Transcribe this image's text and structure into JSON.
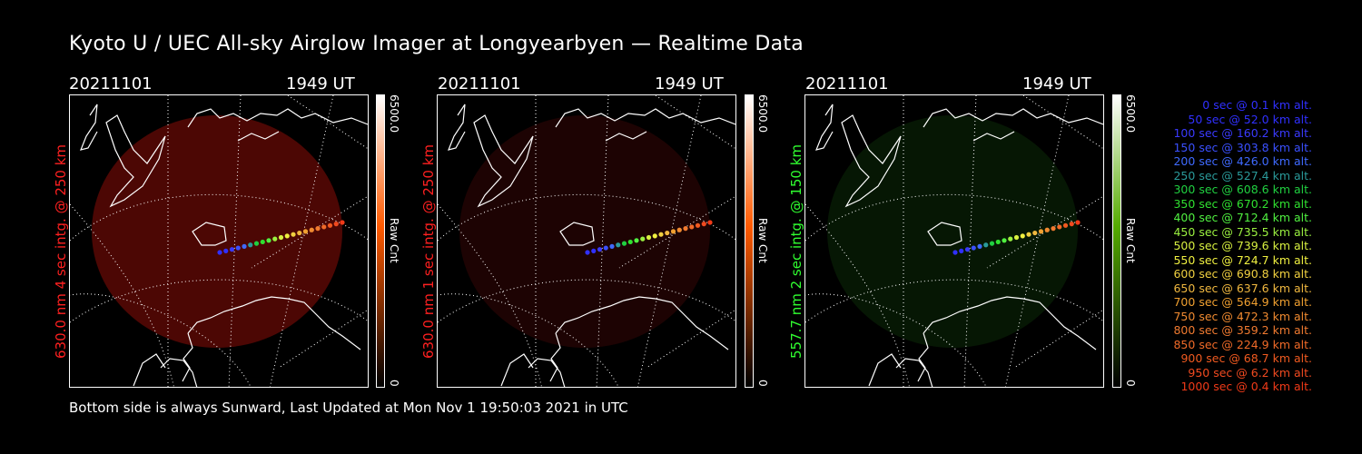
{
  "title": "Kyoto U / UEC All-sky Airglow Imager at Longyearbyen — Realtime Data",
  "footer": "Bottom side is always Sunward, Last Updated at Mon Nov  1 19:50:03 2021 in UTC",
  "panels": [
    {
      "date": "20211101",
      "time": "1949 UT",
      "ylabel": "630.0 nm 4 sec intg. @ 250 km",
      "label_color": "#ff2020",
      "cbar_top": "6500.0",
      "cbar_bottom": "0",
      "cbar_label": "Raw Cnt",
      "cbar_color": "#ff5a00",
      "glow_color": "#8a0c08",
      "glow_opacity": 0.55
    },
    {
      "date": "20211101",
      "time": "1949 UT",
      "ylabel": "630.0 nm 1 sec intg. @ 250 km",
      "label_color": "#ff2020",
      "cbar_top": "6500.0",
      "cbar_bottom": "0",
      "cbar_label": "Raw Cnt",
      "cbar_color": "#ff5a00",
      "glow_color": "#3a0606",
      "glow_opacity": 0.5
    },
    {
      "date": "20211101",
      "time": "1949 UT",
      "ylabel": "557.7 nm 2 sec intg. @ 150 km",
      "label_color": "#30ff30",
      "cbar_top": "6500.0",
      "cbar_bottom": "0",
      "cbar_label": "Raw Cnt",
      "cbar_color": "#55aa00",
      "glow_color": "#0b2a08",
      "glow_opacity": 0.55
    }
  ],
  "legend": [
    {
      "text": "0 sec @    0.1 km alt.",
      "color": "#3030ff"
    },
    {
      "text": "50 sec @   52.0 km alt.",
      "color": "#3030ff"
    },
    {
      "text": "100 sec @  160.2 km alt.",
      "color": "#3a3aff"
    },
    {
      "text": "150 sec @  303.8 km alt.",
      "color": "#3a50ff"
    },
    {
      "text": "200 sec @  426.0 km alt.",
      "color": "#3f6aff"
    },
    {
      "text": "250 sec @  527.4 km alt.",
      "color": "#2a9a9a"
    },
    {
      "text": "300 sec @  608.6 km alt.",
      "color": "#20d040"
    },
    {
      "text": "350 sec @  670.2 km alt.",
      "color": "#30e030"
    },
    {
      "text": "400 sec @  712.4 km alt.",
      "color": "#50f040"
    },
    {
      "text": "450 sec @  735.5 km alt.",
      "color": "#9af040"
    },
    {
      "text": "500 sec @  739.6 km alt.",
      "color": "#d8f040"
    },
    {
      "text": "550 sec @  724.7 km alt.",
      "color": "#f0f040"
    },
    {
      "text": "600 sec @  690.8 km alt.",
      "color": "#f0d040"
    },
    {
      "text": "650 sec @  637.6 km alt.",
      "color": "#f0b840"
    },
    {
      "text": "700 sec @  564.9 km alt.",
      "color": "#f0a030"
    },
    {
      "text": "750 sec @  472.3 km alt.",
      "color": "#f08a30"
    },
    {
      "text": "800 sec @  359.2 km alt.",
      "color": "#f07a30"
    },
    {
      "text": "850 sec @  224.9 km alt.",
      "color": "#f06a28"
    },
    {
      "text": "900 sec @   68.7 km alt.",
      "color": "#f05a20"
    },
    {
      "text": "950 sec @    6.2 km alt.",
      "color": "#f04a20"
    },
    {
      "text": "1000 sec @    0.4 km alt.",
      "color": "#f03a18"
    }
  ]
}
